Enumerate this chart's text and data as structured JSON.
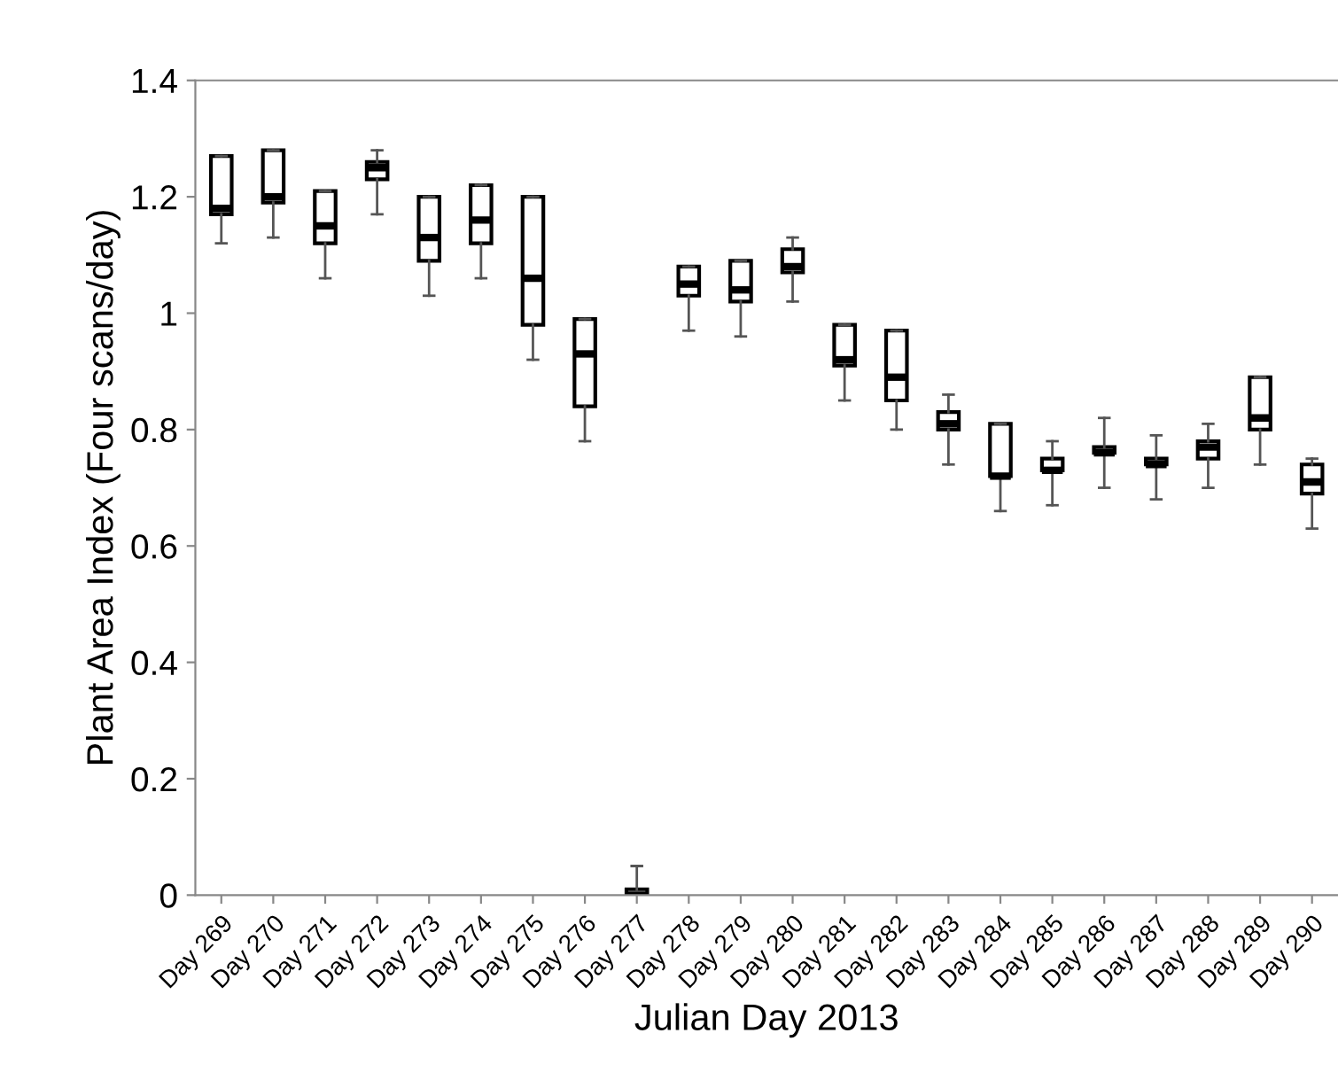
{
  "chart_data": {
    "type": "box",
    "xlabel": "Julian Day 2013",
    "ylabel": "Plant Area Index (Four scans/day)",
    "categories": [
      "Day 269",
      "Day 270",
      "Day 271",
      "Day 272",
      "Day 273",
      "Day 274",
      "Day 275",
      "Day 276",
      "Day 277",
      "Day 278",
      "Day 279",
      "Day 280",
      "Day 281",
      "Day 282",
      "Day 283",
      "Day 284",
      "Day 285",
      "Day 286",
      "Day 287",
      "Day 288",
      "Day 289",
      "Day 290"
    ],
    "boxes": [
      {
        "low": 1.12,
        "q1": 1.17,
        "median": 1.18,
        "q3": 1.27,
        "high": 1.27
      },
      {
        "low": 1.13,
        "q1": 1.19,
        "median": 1.2,
        "q3": 1.28,
        "high": 1.28
      },
      {
        "low": 1.06,
        "q1": 1.12,
        "median": 1.15,
        "q3": 1.21,
        "high": 1.21
      },
      {
        "low": 1.17,
        "q1": 1.23,
        "median": 1.25,
        "q3": 1.26,
        "high": 1.28
      },
      {
        "low": 1.03,
        "q1": 1.09,
        "median": 1.13,
        "q3": 1.2,
        "high": 1.2
      },
      {
        "low": 1.06,
        "q1": 1.12,
        "median": 1.16,
        "q3": 1.22,
        "high": 1.22
      },
      {
        "low": 0.92,
        "q1": 0.98,
        "median": 1.06,
        "q3": 1.2,
        "high": 1.2
      },
      {
        "low": 0.78,
        "q1": 0.84,
        "median": 0.93,
        "q3": 0.99,
        "high": 0.99
      },
      {
        "low": 0.0,
        "q1": 0.0,
        "median": 0.0,
        "q3": 0.01,
        "high": 0.05
      },
      {
        "low": 0.97,
        "q1": 1.03,
        "median": 1.05,
        "q3": 1.08,
        "high": 1.08
      },
      {
        "low": 0.96,
        "q1": 1.02,
        "median": 1.04,
        "q3": 1.09,
        "high": 1.09
      },
      {
        "low": 1.02,
        "q1": 1.07,
        "median": 1.08,
        "q3": 1.11,
        "high": 1.13
      },
      {
        "low": 0.85,
        "q1": 0.91,
        "median": 0.92,
        "q3": 0.98,
        "high": 0.98
      },
      {
        "low": 0.8,
        "q1": 0.85,
        "median": 0.89,
        "q3": 0.97,
        "high": 0.97
      },
      {
        "low": 0.74,
        "q1": 0.8,
        "median": 0.81,
        "q3": 0.83,
        "high": 0.86
      },
      {
        "low": 0.66,
        "q1": 0.72,
        "median": 0.72,
        "q3": 0.81,
        "high": 0.81
      },
      {
        "low": 0.67,
        "q1": 0.73,
        "median": 0.73,
        "q3": 0.75,
        "high": 0.78
      },
      {
        "low": 0.7,
        "q1": 0.76,
        "median": 0.76,
        "q3": 0.77,
        "high": 0.82
      },
      {
        "low": 0.68,
        "q1": 0.74,
        "median": 0.74,
        "q3": 0.75,
        "high": 0.79
      },
      {
        "low": 0.7,
        "q1": 0.75,
        "median": 0.77,
        "q3": 0.78,
        "high": 0.81
      },
      {
        "low": 0.74,
        "q1": 0.8,
        "median": 0.82,
        "q3": 0.89,
        "high": 0.89
      },
      {
        "low": 0.63,
        "q1": 0.69,
        "median": 0.71,
        "q3": 0.74,
        "high": 0.75
      }
    ],
    "ylim": [
      0,
      1.4
    ],
    "yticks": [
      0,
      0.2,
      0.4,
      0.6,
      0.8,
      1,
      1.2,
      1.4
    ],
    "grid": false,
    "legend": false
  }
}
